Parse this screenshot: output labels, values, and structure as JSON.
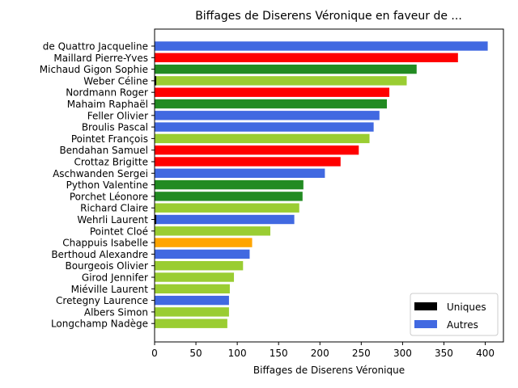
{
  "chart_data": {
    "type": "bar",
    "orientation": "horizontal",
    "title": "Biffages de Diserens Véronique en faveur de ...",
    "xlabel": "Biffages de Diserens Véronique",
    "ylabel": "",
    "xlim": [
      0,
      422
    ],
    "x_ticks": [
      0,
      50,
      100,
      150,
      200,
      250,
      300,
      350,
      400
    ],
    "grid": false,
    "legend_position": "lower-right",
    "legend": [
      {
        "label": "Uniques",
        "color": "#000000"
      },
      {
        "label": "Autres",
        "color": "#4169e1"
      }
    ],
    "categories": [
      "de Quattro Jacqueline",
      "Maillard Pierre-Yves",
      "Michaud Gigon Sophie",
      "Weber Céline",
      "Nordmann Roger",
      "Mahaim Raphaël",
      "Feller Olivier",
      "Broulis Pascal",
      "Pointet François",
      "Bendahan Samuel",
      "Crottaz Brigitte",
      "Aschwanden Sergei",
      "Python Valentine",
      "Porchet Léonore",
      "Richard Claire",
      "Wehrli Laurent",
      "Pointet Cloé",
      "Chappuis Isabelle",
      "Berthoud Alexandre",
      "Bourgeois Olivier",
      "Girod Jennifer",
      "Miéville Laurent",
      "Cretegny Laurence",
      "Albers Simon",
      "Longchamp Nadège"
    ],
    "values": [
      403,
      367,
      317,
      305,
      284,
      281,
      272,
      265,
      260,
      247,
      225,
      206,
      180,
      179,
      175,
      169,
      140,
      118,
      115,
      107,
      96,
      91,
      90,
      90,
      88
    ],
    "uniques": [
      0,
      0,
      0,
      2,
      0,
      0,
      0,
      0,
      0,
      0,
      0,
      0,
      0,
      0,
      0,
      2,
      0,
      0,
      0,
      0,
      0,
      0,
      0,
      0,
      0
    ],
    "colors": [
      "#4169e1",
      "#ff0000",
      "#228b22",
      "#9acd32",
      "#ff0000",
      "#228b22",
      "#4169e1",
      "#4169e1",
      "#9acd32",
      "#ff0000",
      "#ff0000",
      "#4169e1",
      "#228b22",
      "#228b22",
      "#9acd32",
      "#4169e1",
      "#9acd32",
      "#ffa500",
      "#4169e1",
      "#9acd32",
      "#9acd32",
      "#9acd32",
      "#4169e1",
      "#9acd32",
      "#9acd32"
    ]
  }
}
